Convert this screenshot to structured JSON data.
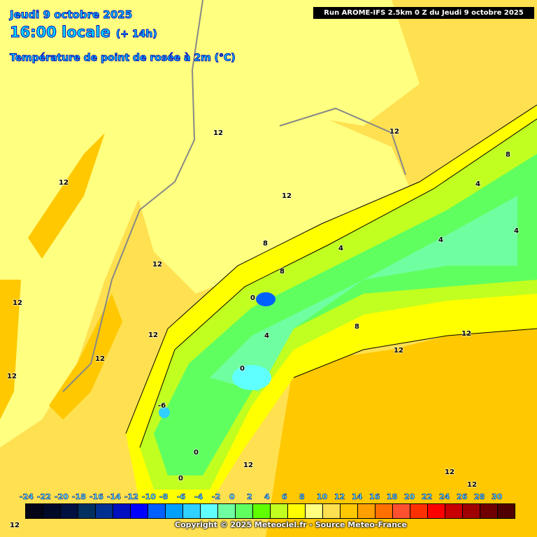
{
  "header": {
    "date": "Jeudi 9 octobre 2025",
    "time": "16:00 locale",
    "lead": "(+ 14h)",
    "parameter": "Température de point de rosée à 2m (°C)",
    "run": "Run AROME-IFS 2.5km 0 Z du Jeudi 9 octobre 2025"
  },
  "contour_labels": [
    "12",
    "12",
    "12",
    "12",
    "12",
    "12",
    "12",
    "12",
    "12",
    "12",
    "8",
    "8",
    "8",
    "4",
    "4",
    "4",
    "4",
    "0",
    "0",
    "0",
    "8",
    "12",
    "12",
    "12",
    "-6",
    "4",
    "0",
    "12",
    "12"
  ],
  "colorbar": {
    "labels": [
      "-24",
      "-22",
      "-20",
      "-18",
      "-16",
      "-14",
      "-12",
      "-10",
      "-8",
      "-6",
      "-4",
      "-2",
      "0",
      "2",
      "4",
      "6",
      "8",
      "10",
      "12",
      "14",
      "16",
      "18",
      "20",
      "22",
      "24",
      "26",
      "28",
      "30"
    ],
    "colors": [
      "#050518",
      "#000a28",
      "#001040",
      "#003060",
      "#003090",
      "#0010c0",
      "#0000ff",
      "#0060ff",
      "#00a0ff",
      "#30d0ff",
      "#60ffff",
      "#70ffa0",
      "#60ff60",
      "#60ff00",
      "#c0ff20",
      "#ffff00",
      "#ffff80",
      "#ffe050",
      "#ffc800",
      "#ffa000",
      "#ff7000",
      "#ff5030",
      "#ff3000",
      "#ff0000",
      "#c80000",
      "#a00000",
      "#700000",
      "#500000"
    ]
  },
  "copyright": "Copyright © 2025 Meteociel.fr - Source Meteo-France"
}
